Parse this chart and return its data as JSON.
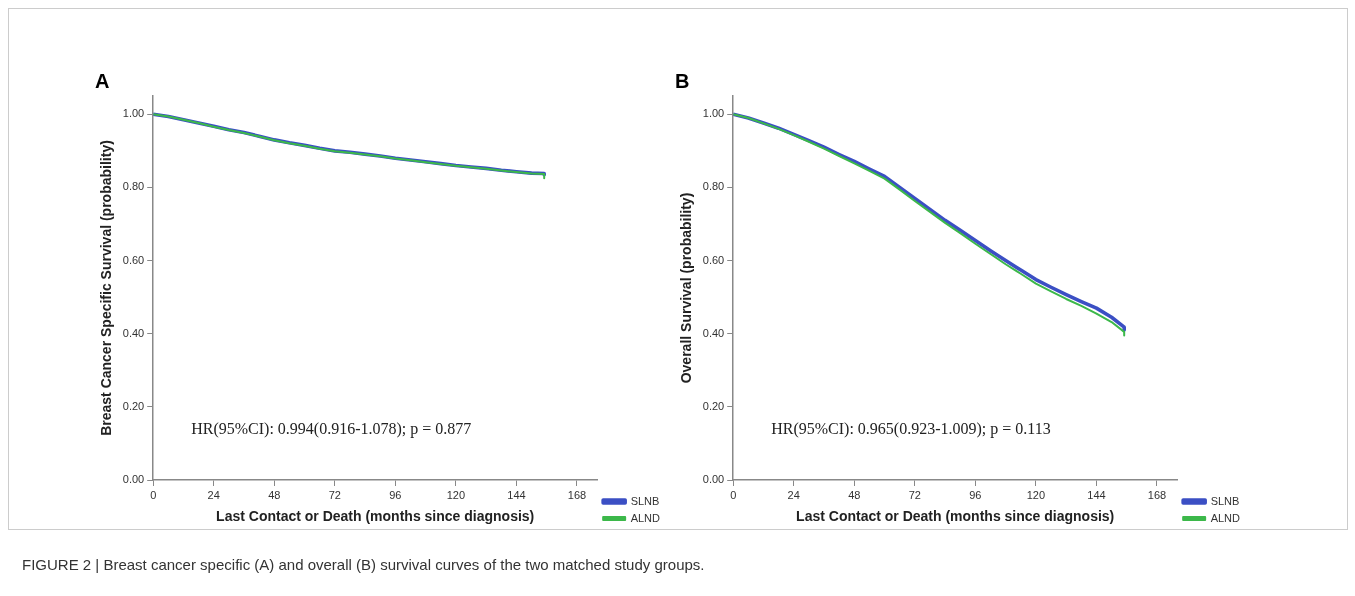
{
  "chart_data": [
    {
      "type": "line",
      "title": "A",
      "xlabel": "Last Contact or Death (months since diagnosis)",
      "ylabel": "Breast Cancer Specific Survival (probability)",
      "annotations": [
        "HR(95%CI): 0.994(0.916-1.078); p = 0.877",
        "FIGURE 2 | Breast cancer specific (A) and overall (B) survival curves of the two matched study groups."
      ],
      "x": [
        0,
        6,
        12,
        18,
        24,
        30,
        36,
        42,
        48,
        54,
        60,
        66,
        72,
        78,
        84,
        90,
        96,
        102,
        108,
        114,
        120,
        126,
        132,
        138,
        144,
        150,
        155,
        155
      ],
      "series": [
        {
          "name": "SLNB",
          "color": "#3b4fc4",
          "values": [
            1.0,
            0.994,
            0.985,
            0.976,
            0.967,
            0.958,
            0.95,
            0.94,
            0.93,
            0.922,
            0.915,
            0.907,
            0.9,
            0.896,
            0.891,
            0.886,
            0.88,
            0.875,
            0.87,
            0.865,
            0.86,
            0.856,
            0.852,
            0.847,
            0.843,
            0.839,
            0.838,
            0.835
          ]
        },
        {
          "name": "ALND",
          "color": "#3cb84a",
          "values": [
            1.0,
            0.994,
            0.985,
            0.976,
            0.966,
            0.957,
            0.949,
            0.939,
            0.929,
            0.921,
            0.914,
            0.906,
            0.899,
            0.895,
            0.89,
            0.885,
            0.879,
            0.874,
            0.869,
            0.864,
            0.859,
            0.855,
            0.851,
            0.846,
            0.842,
            0.838,
            0.837,
            0.825
          ]
        }
      ],
      "xlim": [
        0,
        176
      ],
      "xticks": [
        0,
        24,
        48,
        72,
        96,
        120,
        144,
        168
      ],
      "ylim": [
        0,
        1.05
      ],
      "yticks": [
        {
          "value": 0,
          "label": "0.00"
        },
        {
          "value": 0.2,
          "label": "0.20"
        },
        {
          "value": 0.4,
          "label": "0.40"
        },
        {
          "value": 0.6,
          "label": "0.60"
        },
        {
          "value": 0.8,
          "label": "0.80"
        },
        {
          "value": 1,
          "label": "1.00"
        }
      ],
      "grid": false,
      "legend": "bottom right",
      "marker": "none",
      "line_style": "solid"
    },
    {
      "type": "line",
      "title": "B",
      "xlabel": "Last Contact or Death (months since diagnosis)",
      "ylabel": "Overall Survival (probability)",
      "annotations": [
        "HR(95%CI): 0.965(0.923-1.009); p = 0.113"
      ],
      "x": [
        0,
        6,
        12,
        18,
        24,
        30,
        36,
        42,
        48,
        54,
        60,
        66,
        72,
        78,
        84,
        90,
        96,
        102,
        108,
        114,
        120,
        126,
        132,
        138,
        144,
        150,
        155,
        155
      ],
      "series": [
        {
          "name": "SLNB",
          "color": "#3b4fc4",
          "values": [
            1.0,
            0.99,
            0.976,
            0.962,
            0.945,
            0.928,
            0.91,
            0.89,
            0.871,
            0.85,
            0.83,
            0.8,
            0.77,
            0.74,
            0.71,
            0.683,
            0.655,
            0.627,
            0.6,
            0.574,
            0.548,
            0.527,
            0.507,
            0.488,
            0.47,
            0.445,
            0.418,
            0.41
          ]
        },
        {
          "name": "ALND",
          "color": "#3cb84a",
          "values": [
            1.0,
            0.99,
            0.975,
            0.96,
            0.943,
            0.925,
            0.906,
            0.886,
            0.866,
            0.845,
            0.824,
            0.794,
            0.763,
            0.733,
            0.703,
            0.675,
            0.646,
            0.618,
            0.59,
            0.564,
            0.537,
            0.516,
            0.495,
            0.476,
            0.455,
            0.432,
            0.405,
            0.395
          ]
        }
      ],
      "xlim": [
        0,
        176
      ],
      "xticks": [
        0,
        24,
        48,
        72,
        96,
        120,
        144,
        168
      ],
      "ylim": [
        0,
        1.05
      ],
      "yticks": [
        {
          "value": 0,
          "label": "0.00"
        },
        {
          "value": 0.2,
          "label": "0.20"
        },
        {
          "value": 0.4,
          "label": "0.40"
        },
        {
          "value": 0.6,
          "label": "0.60"
        },
        {
          "value": 0.8,
          "label": "0.80"
        },
        {
          "value": 1,
          "label": "1.00"
        }
      ],
      "grid": false,
      "legend": "bottom right",
      "marker": "none",
      "line_style": "solid"
    }
  ]
}
